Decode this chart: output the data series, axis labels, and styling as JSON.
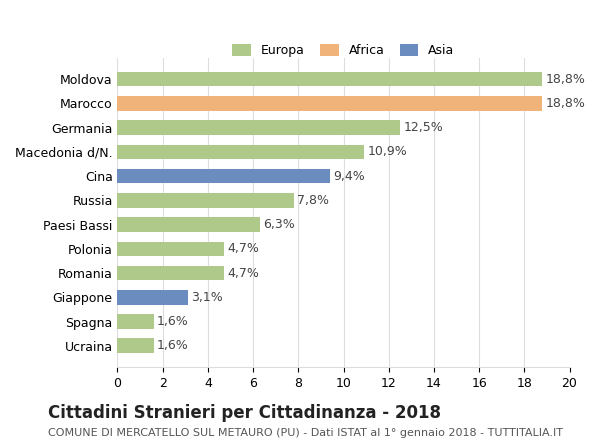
{
  "categories": [
    "Moldova",
    "Marocco",
    "Germania",
    "Macedonia d/N.",
    "Cina",
    "Russia",
    "Paesi Bassi",
    "Polonia",
    "Romania",
    "Giappone",
    "Spagna",
    "Ucraina"
  ],
  "values": [
    18.8,
    18.8,
    12.5,
    10.9,
    9.4,
    7.8,
    6.3,
    4.7,
    4.7,
    3.1,
    1.6,
    1.6
  ],
  "labels": [
    "18,8%",
    "18,8%",
    "12,5%",
    "10,9%",
    "9,4%",
    "7,8%",
    "6,3%",
    "4,7%",
    "4,7%",
    "3,1%",
    "1,6%",
    "1,6%"
  ],
  "continents": [
    "Europa",
    "Africa",
    "Europa",
    "Europa",
    "Asia",
    "Europa",
    "Europa",
    "Europa",
    "Europa",
    "Asia",
    "Europa",
    "Europa"
  ],
  "colors": {
    "Europa": "#aec98a",
    "Africa": "#f0b47a",
    "Asia": "#6b8cbf"
  },
  "legend_order": [
    "Europa",
    "Africa",
    "Asia"
  ],
  "xlim": [
    0,
    20
  ],
  "xticks": [
    0,
    2,
    4,
    6,
    8,
    10,
    12,
    14,
    16,
    18,
    20
  ],
  "title": "Cittadini Stranieri per Cittadinanza - 2018",
  "subtitle": "COMUNE DI MERCATELLO SUL METAURO (PU) - Dati ISTAT al 1° gennaio 2018 - TUTTITALIA.IT",
  "background_color": "#ffffff",
  "grid_color": "#dddddd",
  "bar_height": 0.6,
  "label_fontsize": 9,
  "tick_fontsize": 9,
  "title_fontsize": 12,
  "subtitle_fontsize": 8
}
